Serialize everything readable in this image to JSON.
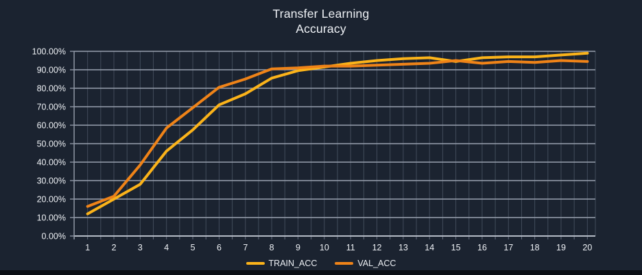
{
  "title": {
    "line1": "Transfer Learning",
    "line2": "Accuracy"
  },
  "colors": {
    "background": "#1B2330",
    "bottom_bar": "#0B0F15",
    "grid_horizontal": "#99A1AF",
    "grid_vertical": "#424C5B",
    "axis_bottom": "#B6BCC7",
    "axis_left": "#8F97A5",
    "tick": "#6A7383",
    "text": "#EEF1F5",
    "train_acc": "#FBB31A",
    "val_acc": "#EF8318"
  },
  "chart_data": {
    "type": "line",
    "title": "Transfer Learning Accuracy",
    "xlabel": "",
    "ylabel": "",
    "x_categories": [
      "1",
      "2",
      "3",
      "4",
      "5",
      "6",
      "7",
      "8",
      "9",
      "10",
      "11",
      "12",
      "13",
      "14",
      "15",
      "16",
      "17",
      "18",
      "19",
      "20"
    ],
    "y_tick_labels": [
      "100.00%",
      "90.00%",
      "80.00%",
      "70.00%",
      "60.00%",
      "50.00%",
      "40.00%",
      "30.00%",
      "20.00%",
      "10.00%",
      "0.00%"
    ],
    "ylim": [
      0,
      100
    ],
    "y_step_percent": 10,
    "grid": "horizontal-major and vertical-half-step",
    "legend_position": "bottom",
    "series": [
      {
        "name": "TRAIN_ACC",
        "color": "#FBB31A",
        "values": [
          12,
          20,
          28,
          46,
          57.5,
          71,
          77,
          85.5,
          89.5,
          91.5,
          93.5,
          95,
          96,
          96.5,
          94.5,
          96.5,
          97,
          97,
          98,
          99
        ]
      },
      {
        "name": "VAL_ACC",
        "color": "#EF8318",
        "values": [
          16,
          21.5,
          38.5,
          58.5,
          69.5,
          80.5,
          85,
          90.5,
          91,
          92,
          92,
          92.5,
          93,
          93.5,
          95,
          93.5,
          94.5,
          94,
          95,
          94.5
        ]
      }
    ]
  }
}
